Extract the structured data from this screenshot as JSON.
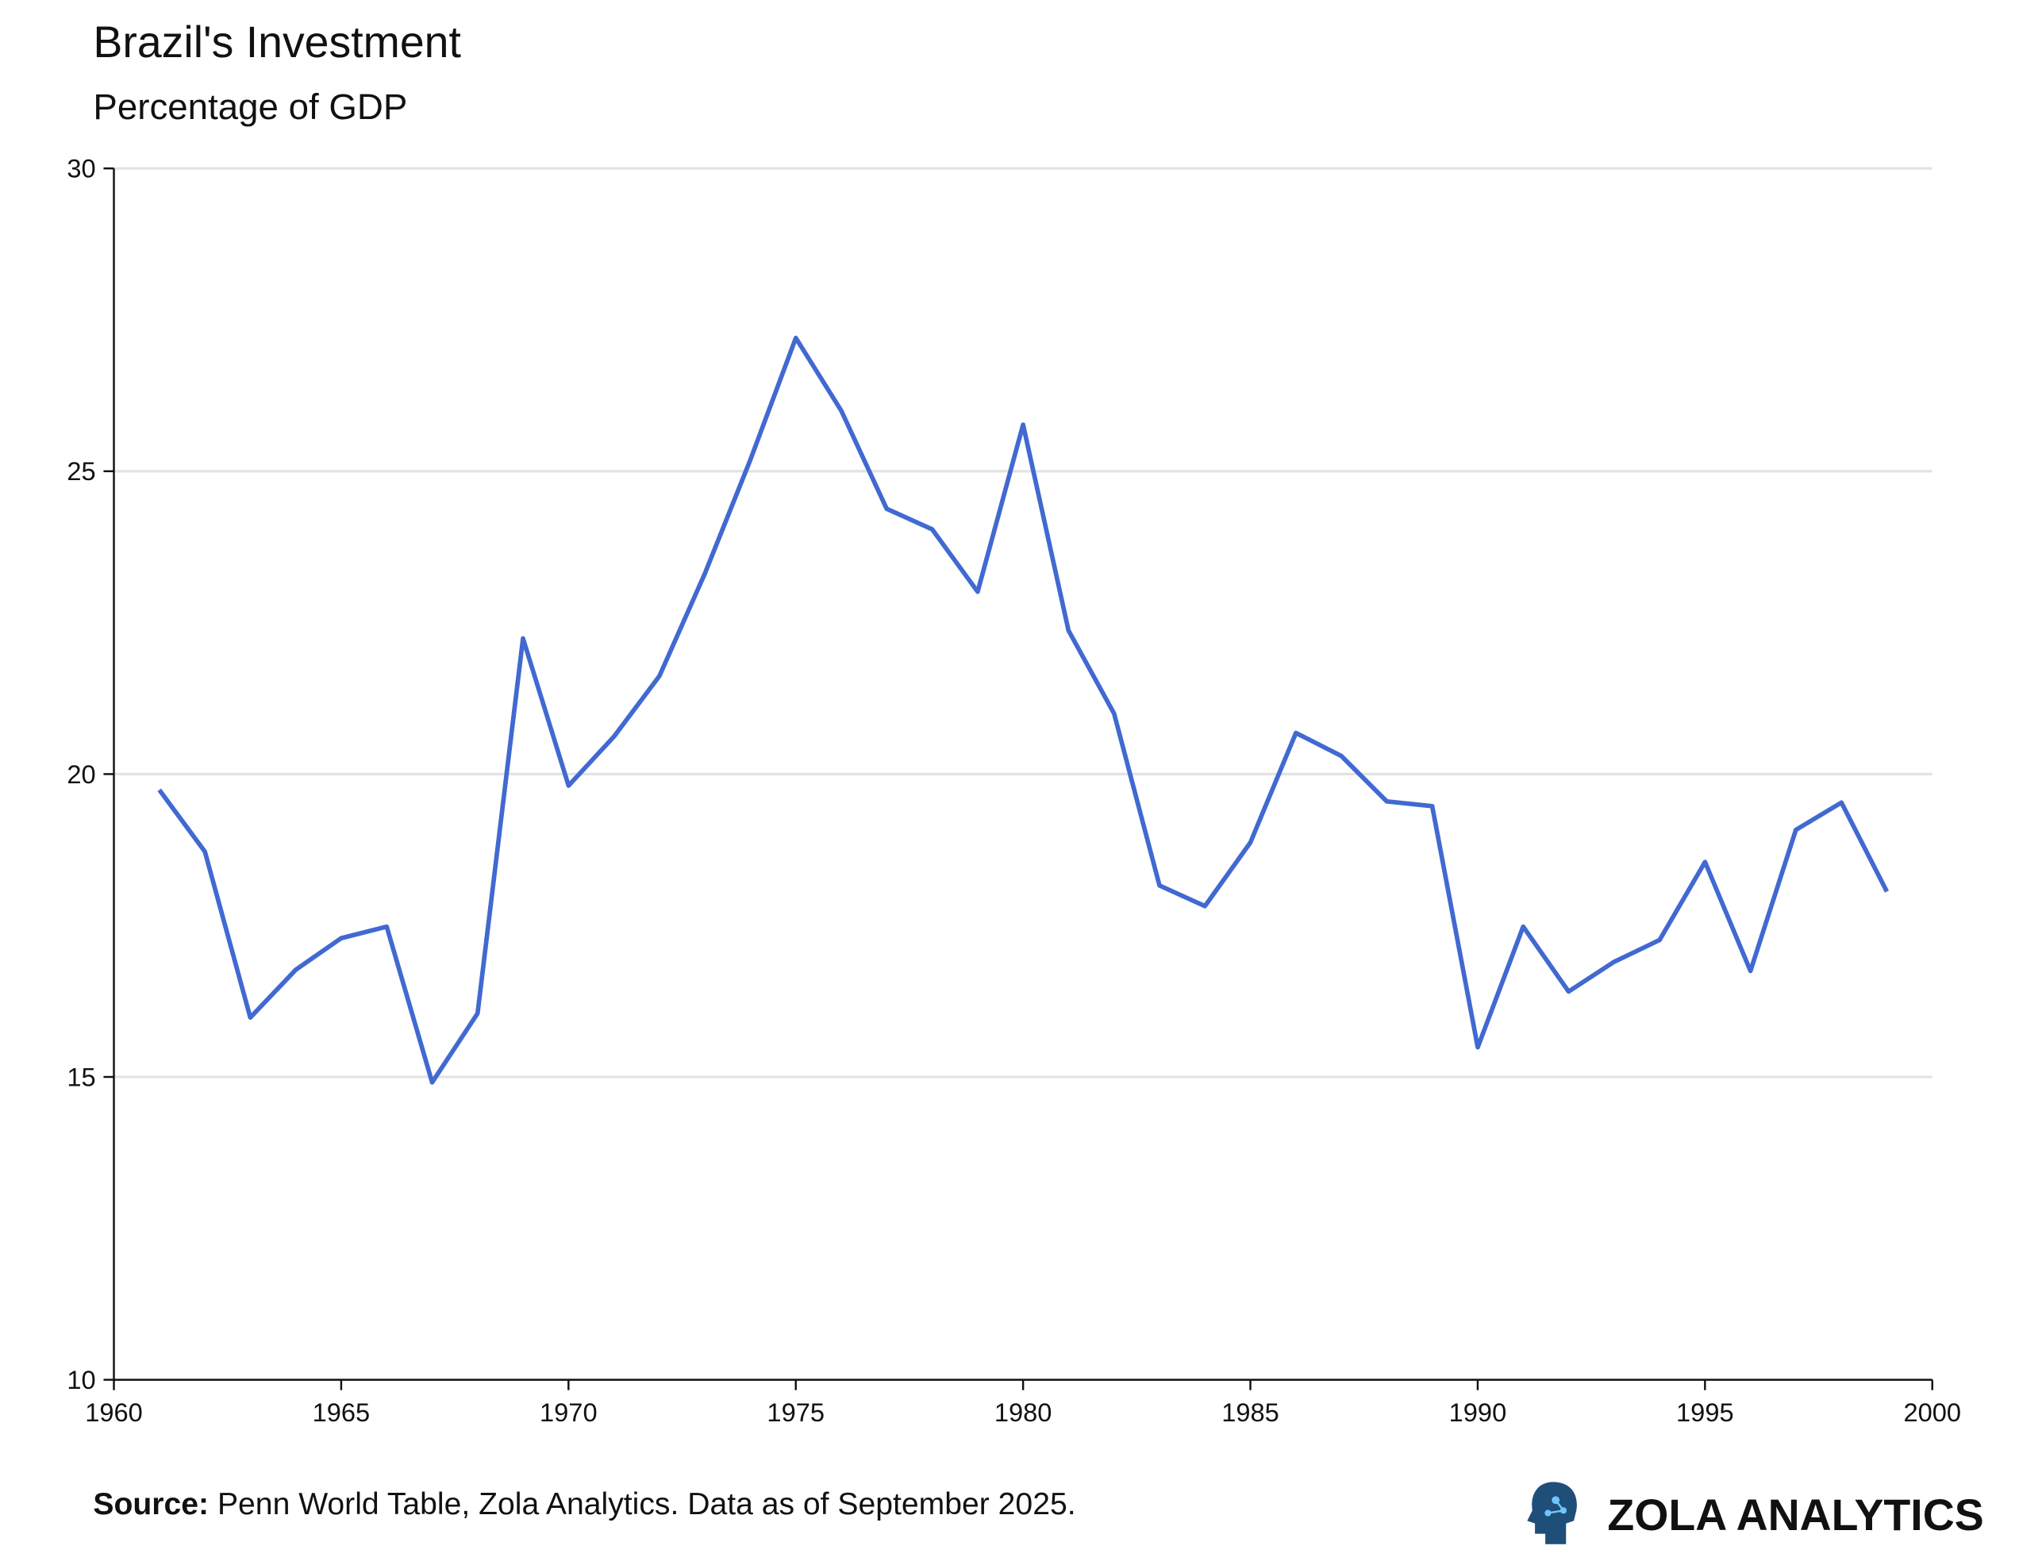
{
  "chart_data": {
    "type": "line",
    "title": "Brazil's Investment",
    "subtitle": "Percentage of GDP",
    "xlabel": "",
    "ylabel": "",
    "xlim": [
      1960,
      2000
    ],
    "ylim": [
      10,
      30
    ],
    "xticks": [
      "1960",
      "1965",
      "1970",
      "1975",
      "1980",
      "1985",
      "1990",
      "1995",
      "2000"
    ],
    "yticks": [
      "10",
      "15",
      "20",
      "25",
      "30"
    ],
    "grid": "horizontal",
    "line_color": "#4169d1",
    "x": [
      1961,
      1962,
      1963,
      1964,
      1965,
      1966,
      1967,
      1968,
      1969,
      1970,
      1971,
      1972,
      1973,
      1974,
      1975,
      1976,
      1977,
      1978,
      1979,
      1980,
      1981,
      1982,
      1983,
      1984,
      1985,
      1986,
      1987,
      1988,
      1989,
      1990,
      1991,
      1992,
      1993,
      1994,
      1995,
      1996,
      1997,
      1998,
      1999
    ],
    "values": [
      19.74,
      18.72,
      15.98,
      16.77,
      17.29,
      17.48,
      14.91,
      16.05,
      22.24,
      19.81,
      20.62,
      21.62,
      23.31,
      25.19,
      27.2,
      26.0,
      24.38,
      24.04,
      23.01,
      25.77,
      22.37,
      21.0,
      18.16,
      17.82,
      18.87,
      20.68,
      20.3,
      19.55,
      19.47,
      15.49,
      17.48,
      16.41,
      16.9,
      17.26,
      18.55,
      16.75,
      19.08,
      19.53,
      18.06
    ]
  },
  "footer": {
    "source_label": "Source:",
    "source_text": " Penn World Table, Zola Analytics. Data as of September 2025.",
    "brand": "ZOLA ANALYTICS",
    "brand_icon": "head-circuit-icon"
  }
}
